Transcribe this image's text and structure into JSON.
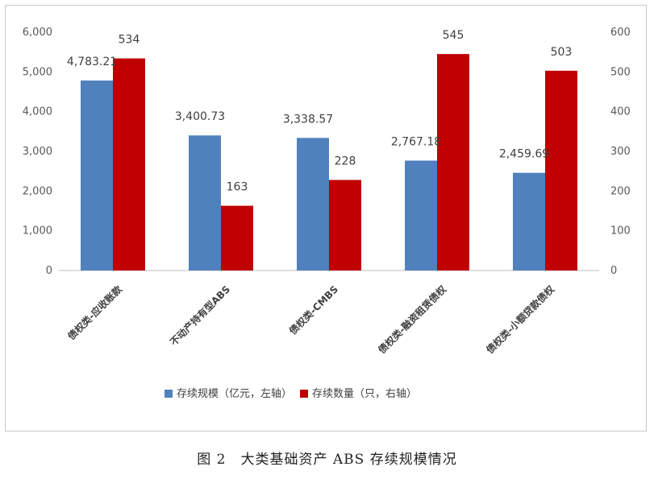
{
  "chart_data": {
    "type": "bar",
    "categories": [
      "债权类-应收账款",
      "不动产持有型ABS",
      "债权类-CMBS",
      "债权类-融资租赁债权",
      "债权类-小额贷款债权"
    ],
    "series": [
      {
        "name": "存续规模（亿元，左轴）",
        "axis": "left",
        "color": "#4f81bd",
        "values": [
          4783.21,
          3400.73,
          3338.57,
          2767.18,
          2459.69
        ],
        "labels": [
          "4,783.21",
          "3,400.73",
          "3,338.57",
          "2,767.18",
          "2,459.69"
        ]
      },
      {
        "name": "存续数量（只，右轴）",
        "axis": "right",
        "color": "#c00000",
        "values": [
          534,
          163,
          228,
          545,
          503
        ],
        "labels": [
          "534",
          "163",
          "228",
          "545",
          "503"
        ]
      }
    ],
    "y_left": {
      "ylim": [
        0,
        6000
      ],
      "ticks": [
        "0",
        "1,000",
        "2,000",
        "3,000",
        "4,000",
        "5,000",
        "6,000"
      ]
    },
    "y_right": {
      "ylim": [
        0,
        600
      ],
      "ticks": [
        "0",
        "100",
        "200",
        "300",
        "400",
        "500",
        "600"
      ]
    },
    "grid": false,
    "legend_position": "bottom"
  },
  "caption": "图 2　大类基础资产 ABS 存续规模情况"
}
